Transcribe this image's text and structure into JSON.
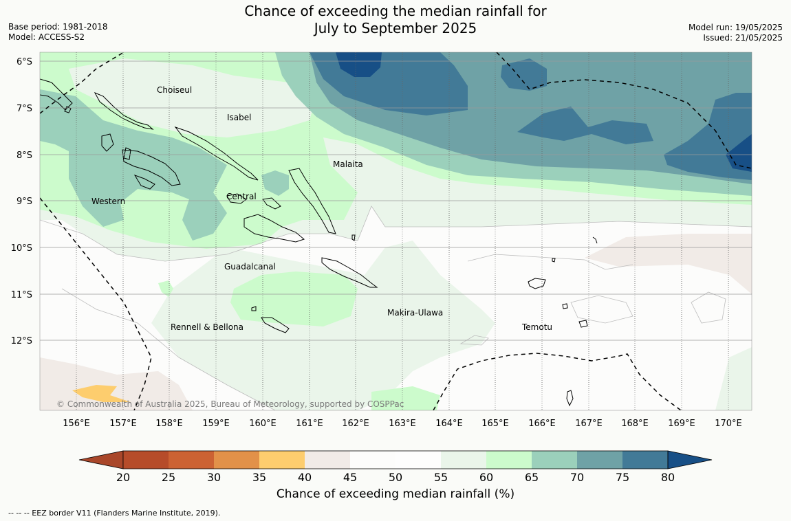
{
  "header": {
    "title_line1": "Chance of exceeding the median rainfall for",
    "title_line2": "July to September 2025",
    "base_period": "Base period: 1981-2018",
    "model": "Model: ACCESS-S2",
    "model_run": "Model run: 19/05/2025",
    "issued": "Issued: 21/05/2025"
  },
  "map": {
    "lat_labels": [
      "6°S",
      "7°S",
      "8°S",
      "9°S",
      "10°S",
      "11°S",
      "12°S"
    ],
    "lon_labels": [
      "156°E",
      "157°E",
      "158°E",
      "159°E",
      "160°E",
      "161°E",
      "162°E",
      "163°E",
      "164°E",
      "165°E",
      "166°E",
      "167°E",
      "168°E",
      "169°E",
      "170°E"
    ],
    "province_labels": [
      "Choiseul",
      "Isabel",
      "Malaita",
      "Western",
      "Central",
      "Guadalcanal",
      "Makira-Ulawa",
      "Rennell & Bellona",
      "Temotu"
    ],
    "copyright": "© Commonwealth of Australia 2025, Bureau of Meteorology, supported by COSPPac"
  },
  "colorbar": {
    "ticks": [
      "20",
      "25",
      "30",
      "35",
      "40",
      "45",
      "50",
      "55",
      "60",
      "65",
      "70",
      "75",
      "80"
    ],
    "colors": [
      "#a9472a",
      "#b64c2a",
      "#cc6233",
      "#e29149",
      "#fdcd6e",
      "#f1ebe7",
      "#fcfcfb",
      "#fdfdfd",
      "#eaf5ea",
      "#ccfbcc",
      "#9bd0bb",
      "#6fa2a6",
      "#427a97",
      "#174f86"
    ],
    "label": "Chance of exceeding median rainfall (%)"
  },
  "legend_note": "--  --  -- EEZ border V11 (Flanders Marine Institute, 2019).",
  "colors": {
    "lt40": "#f1ebe7",
    "lt30": "#fdcd6e",
    "c45_55": "#fcfcfb",
    "c55_60": "#eaf5ea",
    "c60_65": "#ccfbcc",
    "c65_70": "#9bd0bb",
    "c70_75": "#6fa2a6",
    "c75_80": "#427a97",
    "c80": "#174f86"
  }
}
